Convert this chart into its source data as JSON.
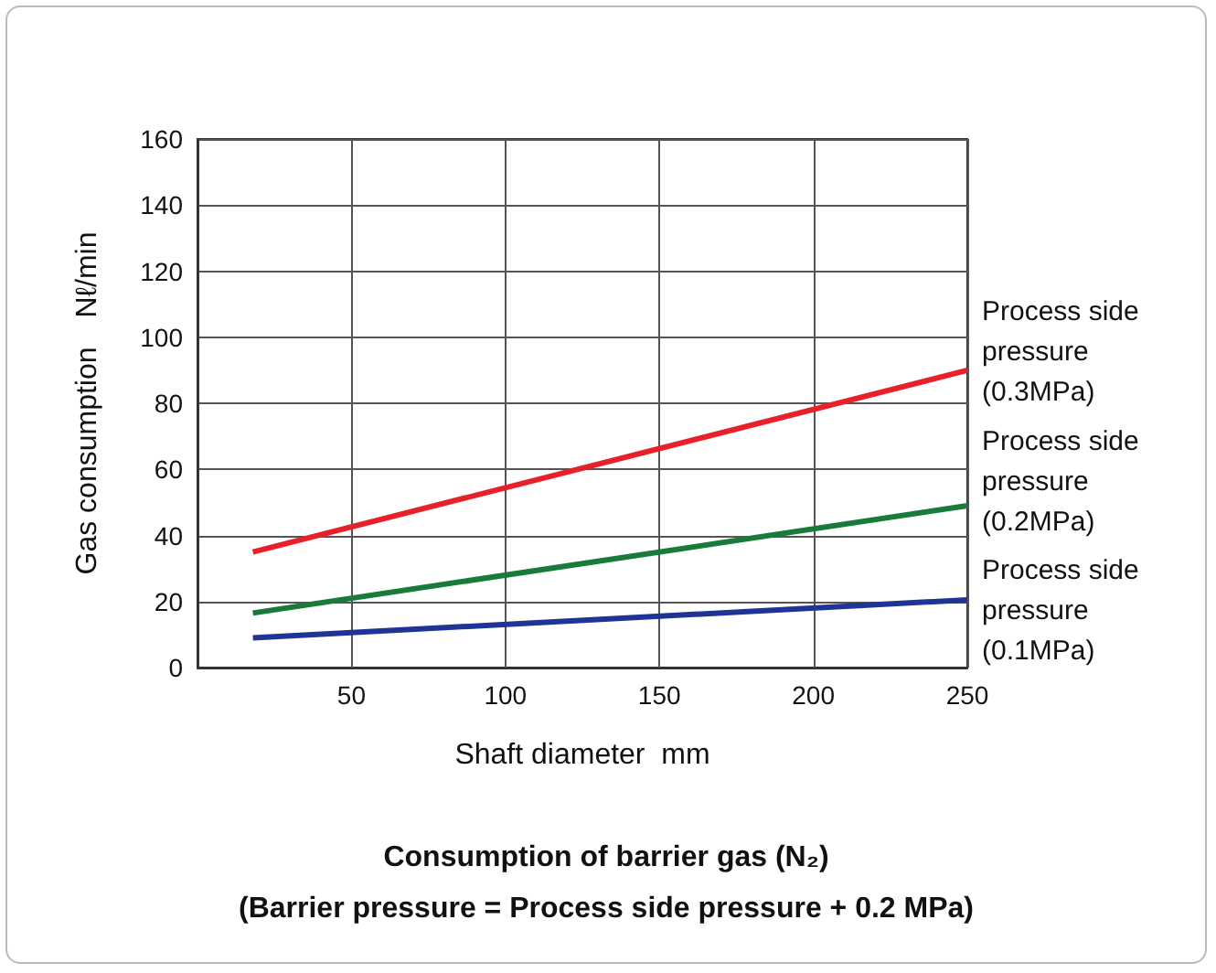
{
  "chart_data": {
    "type": "line",
    "title": "Consumption of barrier gas (N₂)",
    "subtitle": "(Barrier pressure = Process side pressure + 0.2 MPa)",
    "xlabel": "Shaft diameter  mm",
    "ylabel": "Gas consumption　Nℓ/min",
    "xlim": [
      0,
      250
    ],
    "xticks": [
      50,
      100,
      150,
      200,
      250
    ],
    "ylim": [
      0,
      160
    ],
    "yticks": [
      0,
      20,
      40,
      60,
      80,
      100,
      120,
      140,
      160
    ],
    "grid": true,
    "x": [
      18,
      250
    ],
    "legend": false,
    "marker": "none",
    "line_style": "solid",
    "series": [
      {
        "name": "Process side pressure (0.3MPa)",
        "color": "#e8202a",
        "values": [
          35,
          90
        ]
      },
      {
        "name": "Process side pressure (0.2MPa)",
        "color": "#1a7a3c",
        "values": [
          16.5,
          49
        ]
      },
      {
        "name": "Process side pressure (0.1MPa)",
        "color": "#1f3596",
        "values": [
          9,
          20.5
        ]
      }
    ]
  }
}
